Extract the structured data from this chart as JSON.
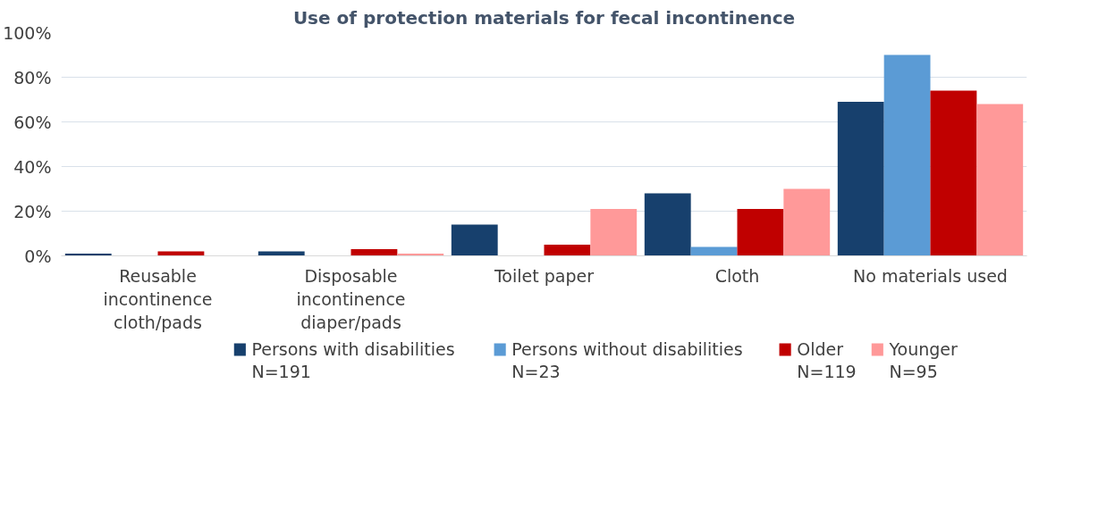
{
  "chart_data": {
    "type": "bar",
    "title": "Use of protection materials for fecal incontinence",
    "categories": [
      "Reusable incontinence cloth/pads",
      "Disposable incontinence diaper/pads",
      "Toilet paper",
      "Cloth",
      "No materials used"
    ],
    "series": [
      {
        "name": "Persons with disabilities\nN=191",
        "color": "#17406d",
        "values": [
          1,
          2,
          14,
          28,
          69
        ]
      },
      {
        "name": "Persons without disabilities\nN=23",
        "color": "#5b9bd5",
        "values": [
          0,
          0,
          0,
          4,
          90
        ]
      },
      {
        "name": "Older\nN=119",
        "color": "#c00000",
        "values": [
          2,
          3,
          5,
          21,
          74
        ]
      },
      {
        "name": "Younger\nN=95",
        "color": "#ff9999",
        "values": [
          0,
          1,
          21,
          30,
          68
        ]
      }
    ],
    "ylim": [
      0,
      100
    ],
    "yticks": [
      {
        "value": 0,
        "label": "0%"
      },
      {
        "value": 20,
        "label": "20%"
      },
      {
        "value": 40,
        "label": "40%"
      },
      {
        "value": 60,
        "label": "60%"
      },
      {
        "value": 80,
        "label": "80%"
      },
      {
        "value": 100,
        "label": "100%"
      }
    ],
    "grid": "y",
    "legend": "bottom"
  }
}
